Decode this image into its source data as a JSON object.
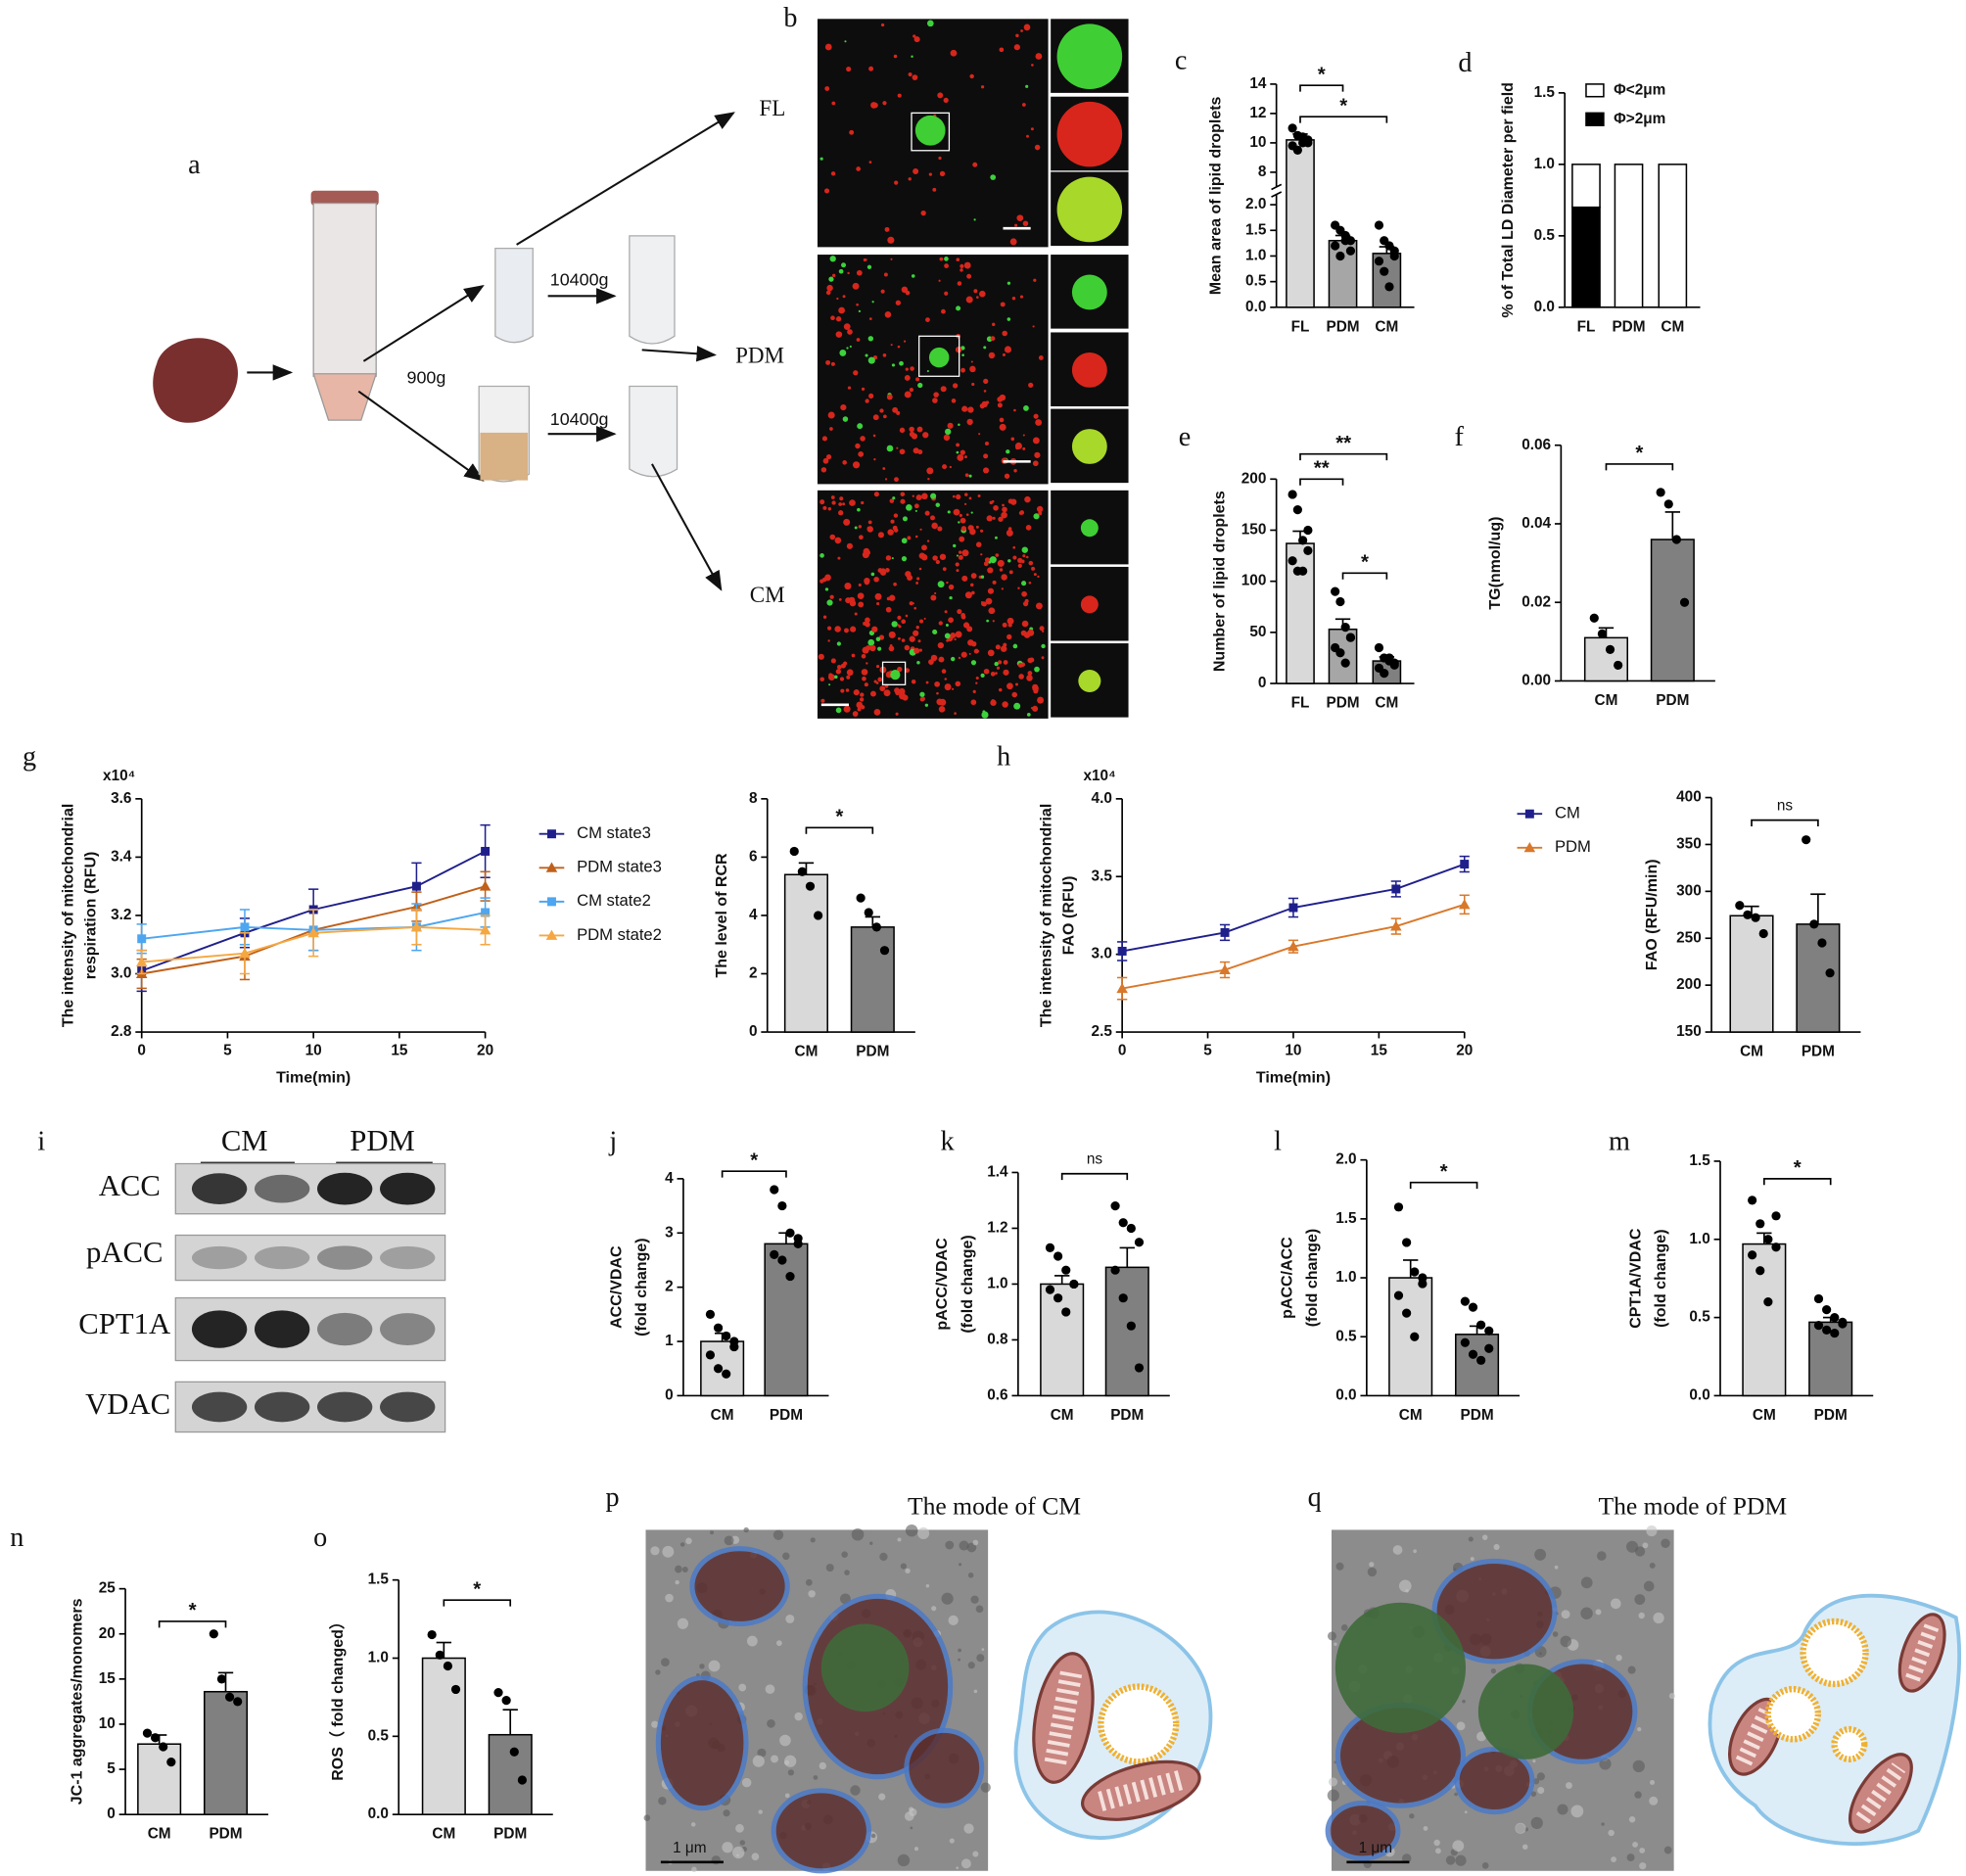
{
  "figure": {
    "a": {
      "panel": "a",
      "centrifugation": [
        "900g",
        "10400g",
        "10400g"
      ],
      "fractions": [
        "FL",
        "PDM",
        "CM"
      ]
    },
    "b": {
      "panel": "b"
    },
    "i": {
      "panel": "i",
      "groups": [
        "CM",
        "PDM"
      ],
      "proteins": [
        "ACC",
        "pACC",
        "CPT1A",
        "VDAC"
      ]
    },
    "p": {
      "panel": "p",
      "title": "The mode of  CM",
      "scale_bar": "1 μm"
    },
    "q": {
      "panel": "q",
      "title": "The mode of  PDM",
      "scale_bar": "1 μm"
    }
  },
  "chart_data": [
    {
      "type": "bar",
      "panel": "c",
      "ylabel": [
        "Mean area of lipid droplets"
      ],
      "categories": [
        "FL",
        "PDM",
        "CM"
      ],
      "values": [
        10.2,
        1.3,
        1.05
      ],
      "errors": [
        0.4,
        0.1,
        0.13
      ],
      "points": [
        [
          11,
          10.5,
          10,
          10.2,
          9.8,
          9.5,
          10.4,
          10
        ],
        [
          1.6,
          1.5,
          1.4,
          1.3,
          1.2,
          1.0,
          1.3,
          1.1
        ],
        [
          1.6,
          1.3,
          1.2,
          1.0,
          0.9,
          0.7,
          0.4,
          1.1
        ]
      ],
      "colors": [
        "#d9d9d9",
        "#a6a6a6",
        "#808080"
      ],
      "ylim": [
        0,
        14
      ],
      "axis_break": [
        2.2,
        7
      ],
      "yticks": [
        {
          "value": 0,
          "label": "0.0"
        },
        0.5,
        {
          "value": 1,
          "label": "1.0"
        },
        1.5,
        {
          "value": 2,
          "label": "2.0"
        },
        8,
        10,
        12,
        14
      ],
      "significance": [
        {
          "between": [
            0,
            1
          ],
          "label": "*"
        },
        {
          "between": [
            0,
            2
          ],
          "label": "*"
        }
      ]
    },
    {
      "type": "stacked_bar",
      "panel": "d",
      "ylabel": [
        "% of Total LD Diameter per field"
      ],
      "categories": [
        "FL",
        "PDM",
        "CM"
      ],
      "series": [
        {
          "name": "Φ<2μm",
          "color": "#ffffff",
          "values": [
            0.3,
            1,
            1
          ]
        },
        {
          "name": "Φ>2μm",
          "color": "#000000",
          "values": [
            0.7,
            0,
            0
          ]
        }
      ],
      "ylim": [
        0,
        1.5
      ],
      "yticks": [
        {
          "value": 0,
          "label": "0.0"
        },
        0.5,
        {
          "value": 1,
          "label": "1.0"
        },
        1.5
      ]
    },
    {
      "type": "bar",
      "panel": "e",
      "ylabel": [
        "Number of lipid droplets"
      ],
      "categories": [
        "FL",
        "PDM",
        "CM"
      ],
      "values": [
        137,
        53,
        22
      ],
      "errors": [
        12,
        10,
        4
      ],
      "points": [
        [
          185,
          170,
          140,
          130,
          120,
          110,
          110,
          150
        ],
        [
          90,
          80,
          55,
          45,
          35,
          30,
          20,
          45
        ],
        [
          35,
          25,
          22,
          20,
          15,
          10,
          25,
          18
        ]
      ],
      "colors": [
        "#d9d9d9",
        "#a6a6a6",
        "#808080"
      ],
      "ylim": [
        0,
        200
      ],
      "yticks": [
        0,
        50,
        100,
        150,
        200
      ],
      "significance": [
        {
          "between": [
            0,
            2
          ],
          "label": "**"
        },
        {
          "between": [
            0,
            1
          ],
          "label": "**"
        },
        {
          "between": [
            1,
            2
          ],
          "label": "*"
        }
      ]
    },
    {
      "type": "bar",
      "panel": "f",
      "ylabel": [
        "TG(nmol/ug)"
      ],
      "categories": [
        "CM",
        "PDM"
      ],
      "values": [
        0.011,
        0.036
      ],
      "errors": [
        0.0025,
        0.007
      ],
      "points": [
        [
          0.016,
          0.012,
          0.008,
          0.004
        ],
        [
          0.048,
          0.045,
          0.036,
          0.02
        ]
      ],
      "colors": [
        "#d9d9d9",
        "#808080"
      ],
      "ylim": [
        0,
        0.06
      ],
      "yticks": [
        {
          "value": 0,
          "label": "0.00"
        },
        0.02,
        0.04,
        0.06
      ],
      "significance": [
        {
          "between": [
            0,
            1
          ],
          "label": "*"
        }
      ]
    },
    {
      "type": "line",
      "panel": "g",
      "ylabel": [
        "The intensity of mitochondrial",
        "respiration (RFU)"
      ],
      "xlabel": "Time(min)",
      "y_multiplier": "x10⁴",
      "x": [
        0,
        6,
        10,
        16,
        20
      ],
      "xlim": [
        0,
        20
      ],
      "xticks": [
        0,
        5,
        10,
        15,
        20
      ],
      "ylim": [
        2.8,
        3.6
      ],
      "yticks": [
        2.8,
        {
          "value": 3,
          "label": "3.0"
        },
        3.2,
        3.4,
        3.6
      ],
      "series": [
        {
          "name": "CM state3",
          "color": "#1f1f8c",
          "marker": "square",
          "values": [
            3.01,
            3.14,
            3.22,
            3.3,
            3.42
          ],
          "errors": [
            0.07,
            0.05,
            0.07,
            0.08,
            0.09
          ]
        },
        {
          "name": "PDM state3",
          "color": "#c0601a",
          "marker": "triangle",
          "values": [
            3.0,
            3.06,
            3.15,
            3.23,
            3.3
          ],
          "errors": [
            0.05,
            0.08,
            0.07,
            0.05,
            0.05
          ]
        },
        {
          "name": "CM state2",
          "color": "#4ea6f0",
          "marker": "square",
          "values": [
            3.12,
            3.16,
            3.15,
            3.16,
            3.21
          ],
          "errors": [
            0.05,
            0.06,
            0.07,
            0.08,
            0.05
          ]
        },
        {
          "name": "PDM state2",
          "color": "#f5a742",
          "marker": "triangle",
          "values": [
            3.04,
            3.07,
            3.14,
            3.16,
            3.15
          ],
          "errors": [
            0.04,
            0.07,
            0.08,
            0.06,
            0.05
          ]
        }
      ]
    },
    {
      "type": "bar",
      "ylabel": [
        "The level of RCR"
      ],
      "categories": [
        "CM",
        "PDM"
      ],
      "values": [
        5.4,
        3.6
      ],
      "errors": [
        0.4,
        0.35
      ],
      "points": [
        [
          6.2,
          5.5,
          5.0,
          4.0
        ],
        [
          4.6,
          4.1,
          3.6,
          2.8
        ]
      ],
      "colors": [
        "#d9d9d9",
        "#808080"
      ],
      "ylim": [
        0,
        8
      ],
      "yticks": [
        0,
        2,
        4,
        6,
        8
      ],
      "significance": [
        {
          "between": [
            0,
            1
          ],
          "label": "*"
        }
      ]
    },
    {
      "type": "line",
      "panel": "h",
      "ylabel": [
        "The intensity of mitochondrial",
        "FAO (RFU)"
      ],
      "xlabel": "Time(min)",
      "y_multiplier": "x10⁴",
      "x": [
        0,
        6,
        10,
        16,
        20
      ],
      "xlim": [
        0,
        20
      ],
      "xticks": [
        0,
        5,
        10,
        15,
        20
      ],
      "ylim": [
        2.5,
        4
      ],
      "yticks": [
        2.5,
        {
          "value": 3,
          "label": "3.0"
        },
        3.5,
        {
          "value": 4,
          "label": "4.0"
        }
      ],
      "series": [
        {
          "name": "CM",
          "color": "#1f1f8c",
          "marker": "square",
          "values": [
            3.02,
            3.14,
            3.3,
            3.42,
            3.58
          ],
          "errors": [
            0.06,
            0.05,
            0.06,
            0.05,
            0.05
          ]
        },
        {
          "name": "PDM",
          "color": "#d9782a",
          "marker": "triangle",
          "values": [
            2.78,
            2.9,
            3.05,
            3.18,
            3.32
          ],
          "errors": [
            0.07,
            0.05,
            0.04,
            0.05,
            0.06
          ]
        }
      ]
    },
    {
      "type": "bar",
      "ylabel": [
        "FAO (RFU/min)"
      ],
      "categories": [
        "CM",
        "PDM"
      ],
      "values": [
        274,
        265
      ],
      "errors": [
        10,
        32
      ],
      "points": [
        [
          285,
          275,
          272,
          255
        ],
        [
          355,
          265,
          245,
          213
        ]
      ],
      "colors": [
        "#d9d9d9",
        "#808080"
      ],
      "ylim": [
        150,
        400
      ],
      "yticks": [
        150,
        200,
        250,
        300,
        350,
        400
      ],
      "significance": [
        {
          "between": [
            0,
            1
          ],
          "label": "ns"
        }
      ]
    },
    {
      "type": "bar",
      "panel": "j",
      "ylabel": [
        "ACC/VDAC",
        "(fold change)"
      ],
      "categories": [
        "CM",
        "PDM"
      ],
      "values": [
        1.0,
        2.8
      ],
      "errors": [
        0.15,
        0.2
      ],
      "points": [
        [
          1.5,
          1.25,
          1.1,
          0.9,
          0.75,
          0.5,
          0.4,
          1.0
        ],
        [
          3.8,
          3.5,
          3.0,
          2.8,
          2.6,
          2.5,
          2.2,
          2.9
        ]
      ],
      "colors": [
        "#d9d9d9",
        "#808080"
      ],
      "ylim": [
        0,
        4
      ],
      "yticks": [
        0,
        1,
        2,
        3,
        4
      ],
      "significance": [
        {
          "between": [
            0,
            1
          ],
          "label": "*"
        }
      ]
    },
    {
      "type": "bar",
      "panel": "k",
      "ylabel": [
        "pACC/VDAC",
        "(fold change)"
      ],
      "categories": [
        "CM",
        "PDM"
      ],
      "values": [
        1.0,
        1.06
      ],
      "errors": [
        0.03,
        0.07
      ],
      "points": [
        [
          1.13,
          1.1,
          1.05,
          1.0,
          0.98,
          0.95,
          0.9,
          1.0
        ],
        [
          1.28,
          1.22,
          1.2,
          1.15,
          1.05,
          0.95,
          0.85,
          0.7
        ]
      ],
      "colors": [
        "#d9d9d9",
        "#808080"
      ],
      "ylim": [
        0.6,
        1.4
      ],
      "yticks": [
        0.6,
        0.8,
        {
          "value": 1,
          "label": "1.0"
        },
        1.2,
        1.4
      ],
      "significance": [
        {
          "between": [
            0,
            1
          ],
          "label": "ns"
        }
      ]
    },
    {
      "type": "bar",
      "panel": "l",
      "ylabel": [
        "pACC/ACC",
        "(fold change)"
      ],
      "categories": [
        "CM",
        "PDM"
      ],
      "values": [
        1.0,
        0.52
      ],
      "errors": [
        0.15,
        0.07
      ],
      "points": [
        [
          1.6,
          1.3,
          1.05,
          0.95,
          0.85,
          0.7,
          0.5,
          1.0
        ],
        [
          0.8,
          0.75,
          0.6,
          0.55,
          0.45,
          0.35,
          0.3,
          0.4
        ]
      ],
      "colors": [
        "#d9d9d9",
        "#808080"
      ],
      "ylim": [
        0,
        2
      ],
      "yticks": [
        {
          "value": 0,
          "label": "0.0"
        },
        0.5,
        {
          "value": 1,
          "label": "1.0"
        },
        1.5,
        {
          "value": 2,
          "label": "2.0"
        }
      ],
      "significance": [
        {
          "between": [
            0,
            1
          ],
          "label": "*"
        }
      ]
    },
    {
      "type": "bar",
      "panel": "m",
      "ylabel": [
        "CPT1A/VDAC",
        "(fold change)"
      ],
      "categories": [
        "CM",
        "PDM"
      ],
      "values": [
        0.97,
        0.47
      ],
      "errors": [
        0.07,
        0.03
      ],
      "points": [
        [
          1.25,
          1.1,
          1.0,
          0.95,
          0.9,
          0.8,
          0.6,
          1.15
        ],
        [
          0.62,
          0.55,
          0.5,
          0.47,
          0.45,
          0.42,
          0.4,
          0.46
        ]
      ],
      "colors": [
        "#d9d9d9",
        "#808080"
      ],
      "ylim": [
        0,
        1.5
      ],
      "yticks": [
        {
          "value": 0,
          "label": "0.0"
        },
        0.5,
        {
          "value": 1,
          "label": "1.0"
        },
        1.5
      ],
      "significance": [
        {
          "between": [
            0,
            1
          ],
          "label": "*"
        }
      ]
    },
    {
      "type": "bar",
      "panel": "n",
      "ylabel": [
        "JC-1 aggregates/monomers"
      ],
      "categories": [
        "CM",
        "PDM"
      ],
      "values": [
        7.8,
        13.6
      ],
      "errors": [
        1.0,
        2.1
      ],
      "points": [
        [
          9,
          8.5,
          7.5,
          5.8
        ],
        [
          20,
          15,
          13,
          12.5
        ]
      ],
      "colors": [
        "#d9d9d9",
        "#808080"
      ],
      "ylim": [
        0,
        25
      ],
      "yticks": [
        0,
        5,
        10,
        15,
        20,
        25
      ],
      "significance": [
        {
          "between": [
            0,
            1
          ],
          "label": "*"
        }
      ]
    },
    {
      "type": "bar",
      "panel": "o",
      "ylabel": [
        "ROS（ fold changed）"
      ],
      "categories": [
        "CM",
        "PDM"
      ],
      "values": [
        1.0,
        0.51
      ],
      "errors": [
        0.1,
        0.16
      ],
      "points": [
        [
          1.15,
          1.02,
          0.95,
          0.8
        ],
        [
          0.78,
          0.73,
          0.4,
          0.22
        ]
      ],
      "colors": [
        "#d9d9d9",
        "#808080"
      ],
      "ylim": [
        0,
        1.5
      ],
      "yticks": [
        {
          "value": 0,
          "label": "0.0"
        },
        0.5,
        {
          "value": 1,
          "label": "1.0"
        },
        1.5
      ],
      "significance": [
        {
          "between": [
            0,
            1
          ],
          "label": "*"
        }
      ]
    }
  ]
}
